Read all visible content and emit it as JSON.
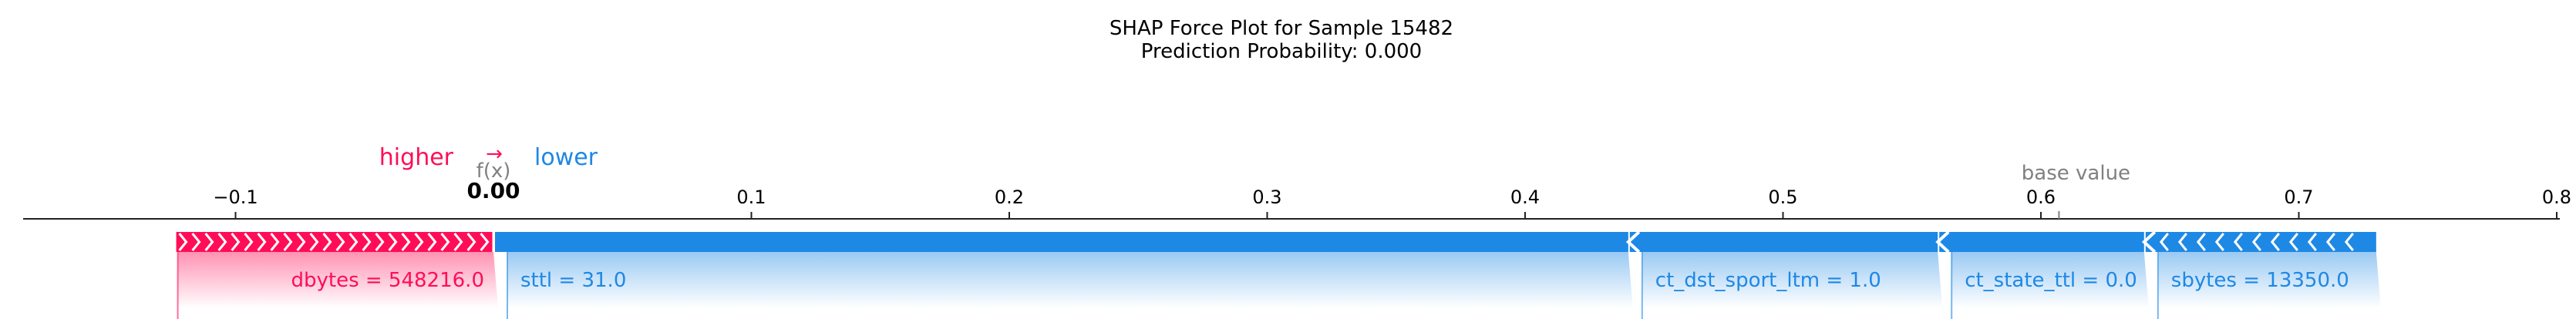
{
  "chart_data": {
    "type": "force",
    "title_line1": "SHAP Force Plot for Sample 15482",
    "title_line2": "Prediction Probability: 0.000",
    "legend_higher": "higher",
    "legend_lower": "lower",
    "fx_label": "f(x)",
    "fx_value_text": "0.00",
    "base_value_label": "base value",
    "base_value": 0.607,
    "output_value": 0.0,
    "xlim": [
      -0.183,
      0.8
    ],
    "ticks": [
      {
        "value": -0.1,
        "label": "−0.1"
      },
      {
        "value": 0.1,
        "label": "0.1"
      },
      {
        "value": 0.2,
        "label": "0.2"
      },
      {
        "value": 0.3,
        "label": "0.3"
      },
      {
        "value": 0.4,
        "label": "0.4"
      },
      {
        "value": 0.5,
        "label": "0.5"
      },
      {
        "value": 0.6,
        "label": "0.6"
      },
      {
        "value": 0.7,
        "label": "0.7"
      },
      {
        "value": 0.8,
        "label": "0.8"
      }
    ],
    "positive_features": [
      {
        "label": "dbytes = 548216.0",
        "start": -0.123,
        "end": 0.0
      }
    ],
    "negative_features": [
      {
        "label": "sttl = 31.0",
        "start": 0.0,
        "end": 0.44
      },
      {
        "label": "ct_dst_sport_ltm = 1.0",
        "start": 0.44,
        "end": 0.56
      },
      {
        "label": "ct_state_ttl = 0.0",
        "start": 0.56,
        "end": 0.64
      },
      {
        "label": "sbytes = 13350.0",
        "start": 0.64,
        "end": 0.73
      }
    ],
    "colors": {
      "positive": "#ff0d57",
      "negative": "#1e88e5",
      "text": "#000000",
      "muted": "#808080"
    }
  }
}
